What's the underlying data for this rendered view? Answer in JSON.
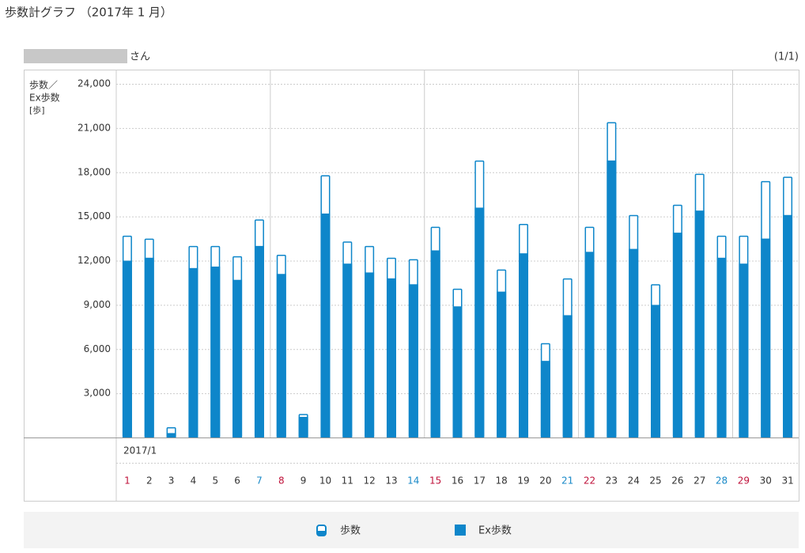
{
  "chart_data": {
    "type": "bar",
    "title": "歩数計グラフ （2017年 1 月）",
    "user_suffix": "さん",
    "page_indicator": "(1/1)",
    "y_label_lines": [
      "歩数／",
      "Ex歩数",
      "[歩]"
    ],
    "x_group_label": "2017/1",
    "categories": [
      "1",
      "2",
      "3",
      "4",
      "5",
      "6",
      "7",
      "8",
      "9",
      "10",
      "11",
      "12",
      "13",
      "14",
      "15",
      "16",
      "17",
      "18",
      "19",
      "20",
      "21",
      "22",
      "23",
      "24",
      "25",
      "26",
      "27",
      "28",
      "29",
      "30",
      "31"
    ],
    "category_colors": [
      "#c0143c",
      "#333333",
      "#333333",
      "#333333",
      "#333333",
      "#333333",
      "#1a8ac8",
      "#c0143c",
      "#333333",
      "#333333",
      "#333333",
      "#333333",
      "#333333",
      "#1a8ac8",
      "#c0143c",
      "#333333",
      "#333333",
      "#333333",
      "#333333",
      "#333333",
      "#1a8ac8",
      "#c0143c",
      "#333333",
      "#333333",
      "#333333",
      "#333333",
      "#333333",
      "#1a8ac8",
      "#c0143c",
      "#333333",
      "#333333"
    ],
    "series": [
      {
        "name": "歩数",
        "color": "#0e86ca",
        "style": "outline",
        "values": [
          13700,
          13500,
          700,
          13000,
          13000,
          12300,
          14800,
          12400,
          1600,
          17800,
          13300,
          13000,
          12200,
          12100,
          14300,
          10100,
          18800,
          11400,
          14500,
          6400,
          10800,
          14300,
          21400,
          15100,
          10400,
          15800,
          17900,
          13700,
          13700,
          17400,
          17700
        ]
      },
      {
        "name": "Ex歩数",
        "color": "#0e86ca",
        "style": "filled",
        "values": [
          12000,
          12200,
          300,
          11500,
          11600,
          10700,
          13000,
          11100,
          1400,
          15200,
          11800,
          11200,
          10800,
          10400,
          12700,
          8900,
          15600,
          9900,
          12500,
          5200,
          8300,
          12600,
          18800,
          12800,
          9000,
          13900,
          15400,
          12200,
          11800,
          13500,
          15100
        ]
      }
    ],
    "ylim": [
      0,
      24000
    ],
    "yticks": [
      {
        "value": 3000,
        "label": "3,000"
      },
      {
        "value": 6000,
        "label": "6,000"
      },
      {
        "value": 9000,
        "label": "9,000"
      },
      {
        "value": 12000,
        "label": "12,000"
      },
      {
        "value": 15000,
        "label": "15,000"
      },
      {
        "value": 18000,
        "label": "18,000"
      },
      {
        "value": 21000,
        "label": "21,000"
      },
      {
        "value": 24000,
        "label": "24,000"
      }
    ],
    "grid": true
  }
}
